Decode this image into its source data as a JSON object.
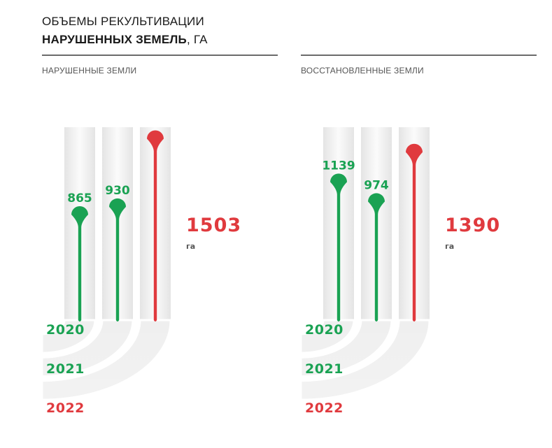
{
  "header": {
    "title_line1": "ОБЪЕМЫ РЕКУЛЬТИВАЦИИ",
    "title_line2": "НАРУШЕННЫХ ЗЕМЕЛЬ",
    "title_unit": ", ГА"
  },
  "colors": {
    "green": "#1aa253",
    "red": "#e03a3e",
    "grey_text": "#555555",
    "column_bg": "#eeeeee"
  },
  "chart_data": [
    {
      "type": "bar",
      "title": "НАРУШЕННЫЕ ЗЕМЛИ",
      "categories": [
        "2020",
        "2021",
        "2022"
      ],
      "values": [
        865,
        930,
        1503
      ],
      "value_labels": [
        "865",
        "930",
        ""
      ],
      "total_label": "1503",
      "total_unit": "га",
      "highlight_category": "2022",
      "ylim": [
        0,
        1600
      ]
    },
    {
      "type": "bar",
      "title": "ВОССТАНОВЛЕННЫЕ ЗЕМЛИ",
      "categories": [
        "2020",
        "2021",
        "2022"
      ],
      "values": [
        1139,
        974,
        1390
      ],
      "value_labels": [
        "1139",
        "974",
        ""
      ],
      "total_label": "1390",
      "total_unit": "га",
      "highlight_category": "2022",
      "ylim": [
        0,
        1600
      ]
    }
  ]
}
